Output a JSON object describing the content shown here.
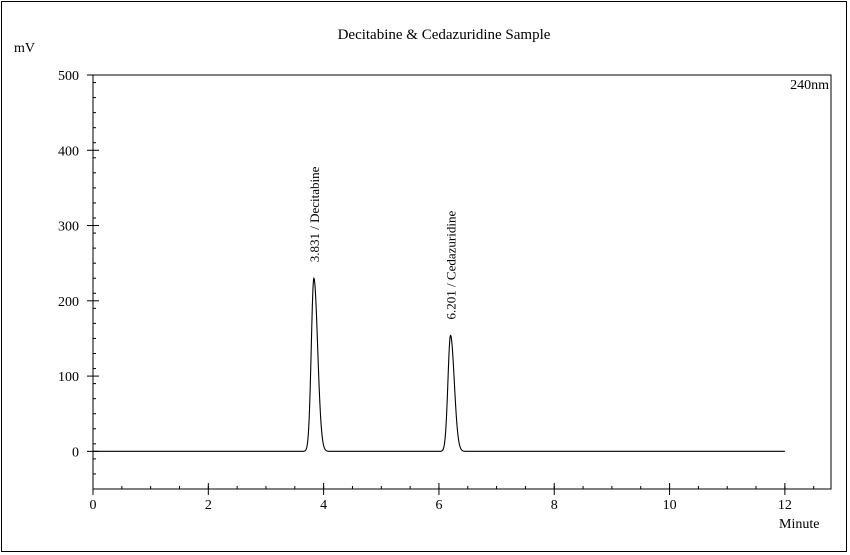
{
  "chart_data": {
    "type": "line",
    "title": "Decitabine & Cedazuridine Sample",
    "ylabel": "mV",
    "xlabel": "Minute",
    "wavelength_label": "240nm",
    "xlim": [
      0,
      12.8
    ],
    "ylim": [
      -50,
      500
    ],
    "x_ticks": [
      0,
      2,
      4,
      6,
      8,
      10,
      12
    ],
    "y_ticks": [
      0,
      100,
      200,
      300,
      400,
      500
    ],
    "x_tick_labels": [
      "0",
      "2",
      "4",
      "6",
      "8",
      "10",
      "12"
    ],
    "y_tick_labels": [
      "0",
      "100",
      "200",
      "300",
      "400",
      "500"
    ],
    "x_range_signal": [
      0,
      12
    ],
    "peaks": [
      {
        "label": "3.831 / Decitabine",
        "rt": 3.831,
        "height": 230
      },
      {
        "label": "6.201 / Cedazuridine",
        "rt": 6.201,
        "height": 154
      }
    ],
    "series": [
      {
        "values": []
      }
    ],
    "grid": false,
    "line_color": "#000000"
  }
}
